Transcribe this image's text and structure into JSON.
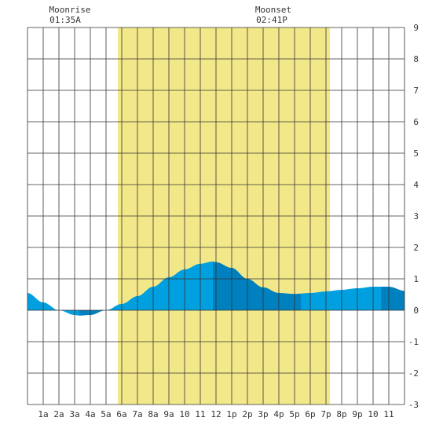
{
  "moon": {
    "rise_label": "Moonrise",
    "rise_time": "01:35A",
    "set_label": "Moonset",
    "set_time": "02:41P"
  },
  "colors": {
    "daylight": "#f3e889",
    "tide_dark": "#0080bf",
    "tide_light": "#00a0e0",
    "grid": "#333333",
    "background": "#ffffff"
  },
  "chart_data": {
    "type": "area",
    "title": "",
    "xlabel": "",
    "ylabel": "",
    "x_unit": "hour",
    "xlim": [
      0,
      24
    ],
    "ylim": [
      -3,
      9
    ],
    "y_ticks": [
      "-3",
      "-2",
      "-1",
      "0",
      "1",
      "2",
      "3",
      "4",
      "5",
      "6",
      "7",
      "8",
      "9"
    ],
    "x_tick_labels": [
      "1a",
      "2a",
      "3a",
      "4a",
      "5a",
      "6a",
      "7a",
      "8a",
      "9a",
      "10",
      "11",
      "12",
      "1p",
      "2p",
      "3p",
      "4p",
      "5p",
      "6p",
      "7p",
      "8p",
      "9p",
      "10",
      "11"
    ],
    "grid": true,
    "daylight": [
      5.75,
      19.25
    ],
    "moonrise_hour": 1.58,
    "moonset_hour": 14.68,
    "series": [
      {
        "x": [
          0,
          1,
          2,
          3,
          3.3,
          4,
          5,
          6,
          7,
          8,
          9,
          10,
          11,
          11.8,
          12,
          13,
          14,
          15,
          16,
          17,
          18,
          19,
          20,
          21,
          22,
          23,
          24
        ],
        "values": [
          0.55,
          0.25,
          0.0,
          -0.15,
          -0.17,
          -0.15,
          0.0,
          0.2,
          0.45,
          0.75,
          1.05,
          1.3,
          1.48,
          1.55,
          1.53,
          1.35,
          1.0,
          0.73,
          0.55,
          0.52,
          0.55,
          0.6,
          0.65,
          0.7,
          0.75,
          0.75,
          0.62
        ]
      }
    ],
    "band_boundaries": [
      0,
      3.3,
      5.3,
      11.8,
      17.4,
      22.5,
      24
    ]
  }
}
